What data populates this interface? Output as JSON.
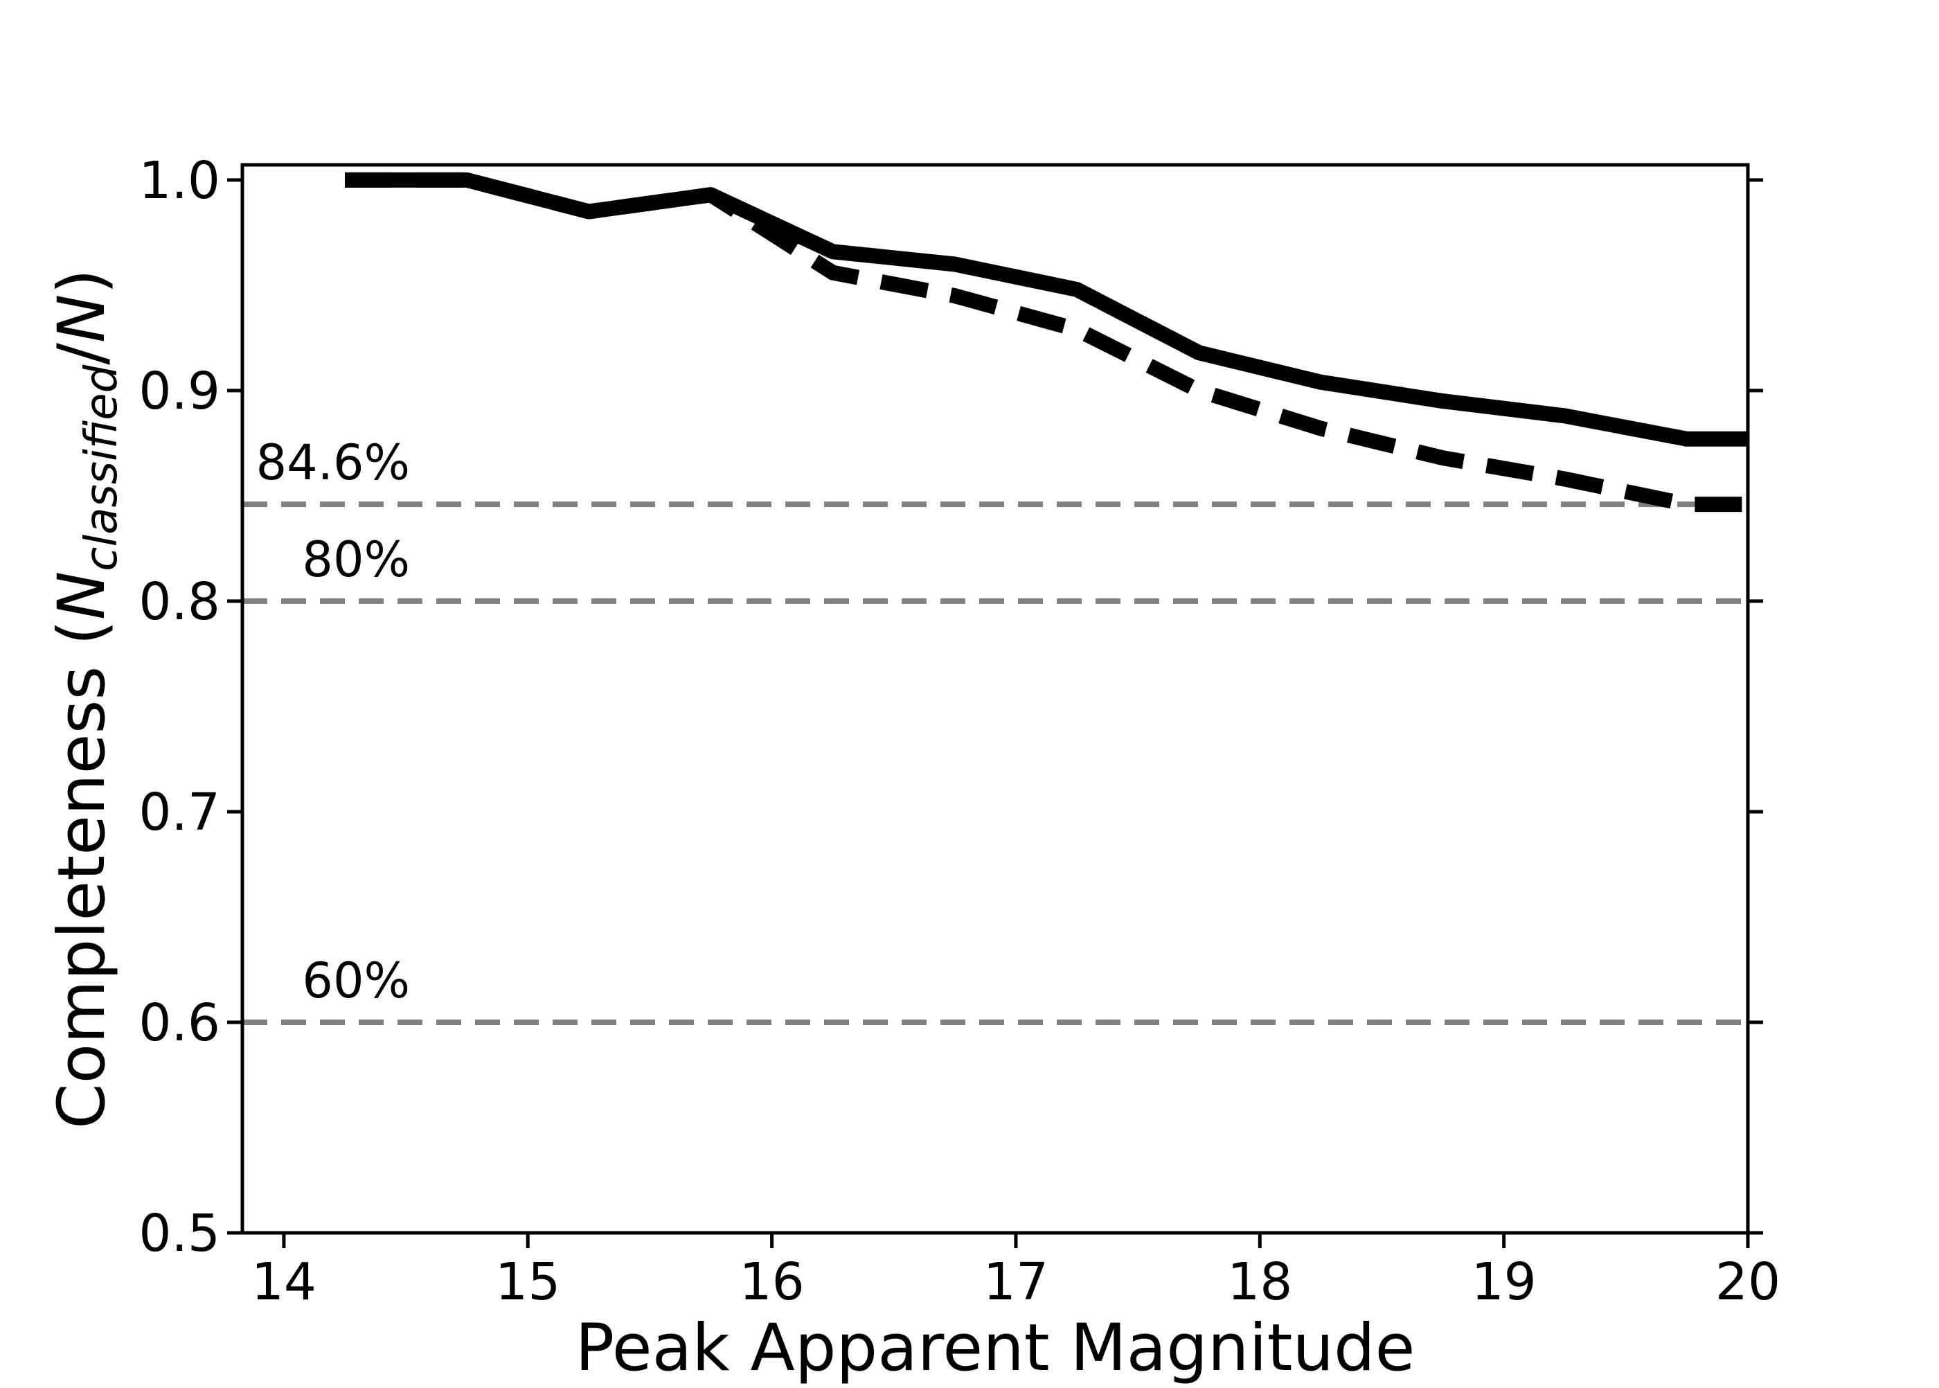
{
  "figure": {
    "background_color": "#ffffff"
  },
  "chart_data": {
    "type": "line",
    "title": "",
    "xlabel": "Peak Apparent Magnitude",
    "ylabel": "Completeness (N_classified/N)",
    "ylabel_parts": {
      "prefix": "Completeness (",
      "n1": "N",
      "subscript": "classified",
      "slash": "/",
      "n2": "N",
      "suffix": ")"
    },
    "xlim": [
      13.83,
      20.0
    ],
    "ylim": [
      0.5,
      1.0072
    ],
    "grid": false,
    "legend_position": "none",
    "xticks": {
      "values": [
        14,
        15,
        16,
        17,
        18,
        19,
        20
      ],
      "labels": [
        "14",
        "15",
        "16",
        "17",
        "18",
        "19",
        "20"
      ]
    },
    "yticks": {
      "values": [
        0.5,
        0.6,
        0.7,
        0.8,
        0.9,
        1.0
      ],
      "labels": [
        "0.5",
        "0.6",
        "0.7",
        "0.8",
        "0.9",
        "1.0"
      ]
    },
    "x": [
      14.25,
      14.75,
      15.25,
      15.75,
      16.25,
      16.75,
      17.25,
      17.75,
      18.25,
      18.75,
      19.25,
      19.75,
      20.0
    ],
    "series": [
      {
        "name": "completeness-dashed",
        "style": "dashed",
        "color": "#000000",
        "values": [
          1.0,
          1.0,
          0.985,
          0.993,
          0.956,
          0.945,
          0.929,
          0.9,
          0.882,
          0.868,
          0.858,
          0.846,
          0.846
        ]
      },
      {
        "name": "completeness-solid",
        "style": "solid",
        "color": "#000000",
        "values": [
          1.0,
          1.0,
          0.985,
          0.993,
          0.966,
          0.96,
          0.948,
          0.918,
          0.904,
          0.895,
          0.888,
          0.877,
          0.877
        ]
      }
    ],
    "reference_lines": [
      {
        "label": "84.6%",
        "value": 0.846
      },
      {
        "label": "80%",
        "value": 0.8
      },
      {
        "label": "60%",
        "value": 0.6
      }
    ],
    "colors": {
      "series": "#000000",
      "reference": "#808080",
      "reference_text": "#808080"
    }
  }
}
